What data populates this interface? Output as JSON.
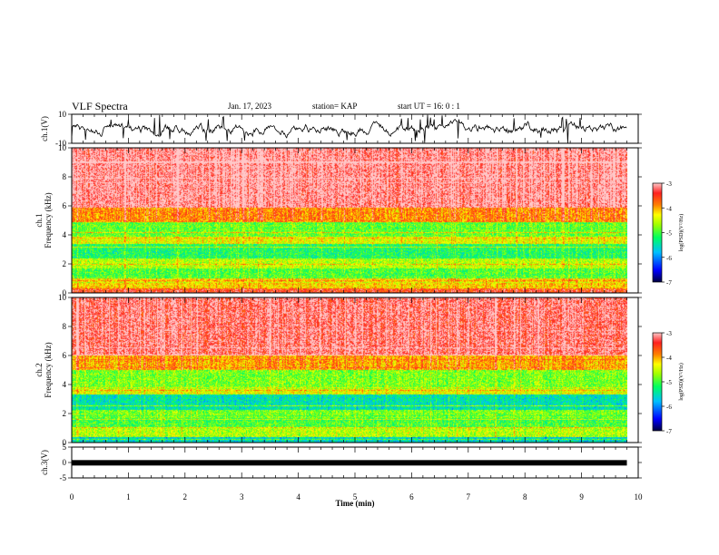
{
  "header": {
    "title": "VLF Spectra",
    "date": "Jan. 17, 2023",
    "station": "station= KAP",
    "start": "start  UT =   16: 0  : 1"
  },
  "colors": {
    "spectrogram_scale": [
      "#000040",
      "#0000ff",
      "#00c0ff",
      "#00ff60",
      "#a0ff00",
      "#ffff00",
      "#ff8000",
      "#ff2020",
      "#ffc8c8"
    ]
  },
  "chart_data": [
    {
      "type": "line",
      "ylabel": "ch.1(V)",
      "xlim": [
        0,
        10
      ],
      "ylim": [
        -10,
        10
      ],
      "yticks": [
        "10",
        "-10"
      ],
      "note_visible": "noisy waveform, values mostly between -4 and 4 V, data span 0 to 9.8 min"
    },
    {
      "type": "heatmap",
      "ylabel_lines": [
        "ch.1",
        "Frequency  (kHz)"
      ],
      "xlim": [
        0,
        10
      ],
      "ylim": [
        0,
        10
      ],
      "yticks": [
        "0",
        "2",
        "4",
        "6",
        "8",
        "10"
      ],
      "data_end_min": 9.8,
      "bands_khz": [
        {
          "range": [
            0,
            0.3
          ],
          "level": -3.5
        },
        {
          "range": [
            0.3,
            1.0
          ],
          "level": -4.2
        },
        {
          "range": [
            1.0,
            1.7
          ],
          "level": -5.0
        },
        {
          "range": [
            1.7,
            2.4
          ],
          "level": -4.6
        },
        {
          "range": [
            2.4,
            3.4
          ],
          "level": -5.2
        },
        {
          "range": [
            3.4,
            3.9
          ],
          "level": -4.4
        },
        {
          "range": [
            3.9,
            4.9
          ],
          "level": -4.9
        },
        {
          "range": [
            4.9,
            5.9
          ],
          "level": -3.9
        },
        {
          "range": [
            5.9,
            10.0
          ],
          "level": -3.1
        }
      ],
      "colorbar": {
        "label": "log(PSD)(V²/Hz)",
        "ticks": [
          "-3",
          "-4",
          "-5",
          "-6",
          "-7"
        ],
        "range": [
          -7,
          -3
        ]
      }
    },
    {
      "type": "heatmap",
      "ylabel_lines": [
        "ch.2",
        "Frequency  (kHz)"
      ],
      "xlim": [
        0,
        10
      ],
      "ylim": [
        0,
        10
      ],
      "yticks": [
        "0",
        "2",
        "4",
        "6",
        "8",
        "10"
      ],
      "data_end_min": 9.8,
      "bands_khz": [
        {
          "range": [
            0,
            0.4
          ],
          "level": -5.6
        },
        {
          "range": [
            0.4,
            1.0
          ],
          "level": -4.6
        },
        {
          "range": [
            1.0,
            1.7
          ],
          "level": -5.0
        },
        {
          "range": [
            1.7,
            2.2
          ],
          "level": -4.8
        },
        {
          "range": [
            2.2,
            3.3
          ],
          "level": -5.5
        },
        {
          "range": [
            3.3,
            3.8
          ],
          "level": -4.4
        },
        {
          "range": [
            3.8,
            5.0
          ],
          "level": -4.8
        },
        {
          "range": [
            5.0,
            6.0
          ],
          "level": -4.0
        },
        {
          "range": [
            6.0,
            10.0
          ],
          "level": -3.2
        }
      ],
      "colorbar": {
        "label": "log(PSD)(V²/Hz)",
        "ticks": [
          "-3",
          "-4",
          "-5",
          "-6",
          "-7"
        ],
        "range": [
          -7,
          -3
        ]
      }
    },
    {
      "type": "line",
      "ylabel": "ch.3(V)",
      "xlim": [
        0,
        10
      ],
      "ylim": [
        -5,
        5
      ],
      "yticks": [
        "5",
        "0",
        "-5"
      ],
      "level_v": -0.1,
      "xlabel": "Time  (min)",
      "xticks": [
        "0",
        "1",
        "2",
        "3",
        "4",
        "5",
        "6",
        "7",
        "8",
        "9",
        "10"
      ]
    }
  ]
}
